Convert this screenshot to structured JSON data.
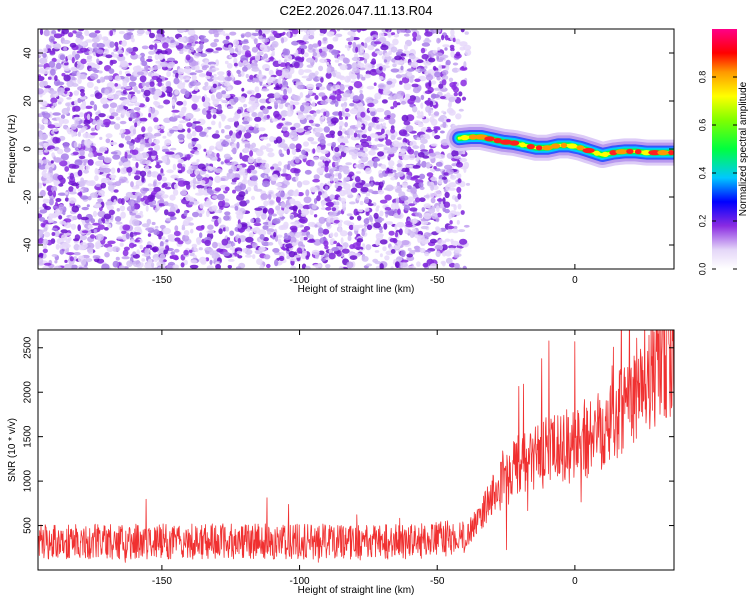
{
  "title": "C2E2.2026.047.11.13.R04",
  "colors": {
    "snr": "#f03030",
    "frame": "#000000",
    "scatter": "#8a2be2"
  },
  "chart_data": [
    {
      "type": "heatmap",
      "xlabel": "Height of straight line (km)",
      "ylabel": "Frequency (Hz)",
      "xlim": [
        -195,
        36
      ],
      "ylim": [
        -50,
        50
      ],
      "x_ticks": [
        -150,
        -100,
        -50,
        0
      ],
      "x_tick_labels": [
        "-150",
        "-100",
        "-50",
        "0"
      ],
      "y_ticks": [
        -40,
        -20,
        0,
        20,
        40
      ],
      "y_tick_labels": [
        "-40",
        "-20",
        "0",
        "20",
        "40"
      ],
      "noise_region_x": [
        -195,
        -42
      ],
      "signal_track": {
        "x": [
          -42,
          -38,
          -34,
          -30,
          -26,
          -22,
          -18,
          -14,
          -10,
          -6,
          -2,
          2,
          6,
          10,
          14,
          18,
          22,
          26,
          30,
          34,
          36
        ],
        "y": [
          4.5,
          5,
          5,
          4,
          3,
          2.5,
          1.5,
          0.5,
          0.5,
          1.5,
          1.5,
          0.5,
          -1,
          -2.5,
          -1.5,
          -1,
          -1,
          -1.5,
          -1.5,
          -1.5,
          -1.5
        ]
      },
      "colorbar": {
        "label": "Normalized spectral amplitude",
        "range": [
          0,
          1
        ],
        "ticks": [
          0.0,
          0.2,
          0.4,
          0.6,
          0.8
        ],
        "tick_labels": [
          "0.0",
          "0.2",
          "0.4",
          "0.6",
          "0.8"
        ]
      }
    },
    {
      "type": "line",
      "xlabel": "Height of straight line (km)",
      "ylabel": "SNR (10 * v/v)",
      "xlim": [
        -195,
        36
      ],
      "ylim": [
        0,
        2700
      ],
      "x_ticks": [
        -150,
        -100,
        -50,
        0
      ],
      "x_tick_labels": [
        "-150",
        "-100",
        "-50",
        "0"
      ],
      "y_ticks": [
        500,
        1000,
        1500,
        2000,
        2500
      ],
      "y_tick_labels": [
        "500",
        "1000",
        "1500",
        "2000",
        "2500"
      ],
      "trend": {
        "x": [
          -195,
          -150,
          -100,
          -60,
          -40,
          -35,
          -30,
          -25,
          -20,
          -15,
          -10,
          -5,
          0,
          5,
          10,
          15,
          20,
          25,
          30,
          36
        ],
        "y": [
          300,
          300,
          300,
          300,
          350,
          550,
          800,
          1000,
          1150,
          1200,
          1300,
          1300,
          1400,
          1450,
          1600,
          1750,
          1900,
          2100,
          2200,
          2350
        ]
      }
    }
  ]
}
